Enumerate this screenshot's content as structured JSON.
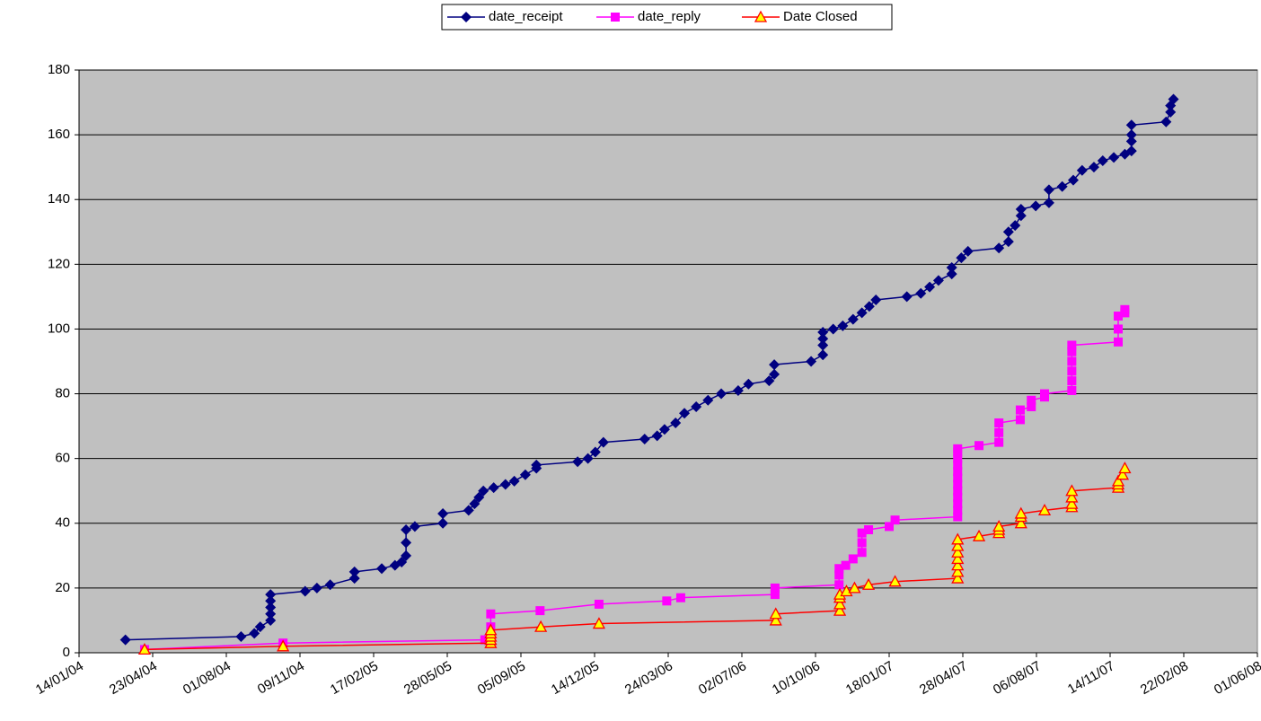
{
  "chart_data": {
    "type": "line",
    "legend": "top",
    "grid": true,
    "background": "#c0c0c0",
    "xlim": [
      "2004-01-14",
      "2008-06-01"
    ],
    "xticks": [
      {
        "value": "2004-01-14",
        "label": "14/01/04"
      },
      {
        "value": "2004-04-23",
        "label": "23/04/04"
      },
      {
        "value": "2004-08-01",
        "label": "01/08/04"
      },
      {
        "value": "2004-11-09",
        "label": "09/11/04"
      },
      {
        "value": "2005-02-17",
        "label": "17/02/05"
      },
      {
        "value": "2005-05-28",
        "label": "28/05/05"
      },
      {
        "value": "2005-09-05",
        "label": "05/09/05"
      },
      {
        "value": "2005-12-14",
        "label": "14/12/05"
      },
      {
        "value": "2006-03-24",
        "label": "24/03/06"
      },
      {
        "value": "2006-07-02",
        "label": "02/07/06"
      },
      {
        "value": "2006-10-10",
        "label": "10/10/06"
      },
      {
        "value": "2007-01-18",
        "label": "18/01/07"
      },
      {
        "value": "2007-04-28",
        "label": "28/04/07"
      },
      {
        "value": "2007-08-06",
        "label": "06/08/07"
      },
      {
        "value": "2007-11-14",
        "label": "14/11/07"
      },
      {
        "value": "2008-02-22",
        "label": "22/02/08"
      },
      {
        "value": "2008-06-01",
        "label": "01/06/08"
      }
    ],
    "ylim": [
      0,
      180
    ],
    "yticks": [
      0,
      20,
      40,
      60,
      80,
      100,
      120,
      140,
      160,
      180
    ],
    "series": [
      {
        "name": "date_receipt",
        "color": "#000080",
        "marker": "diamond",
        "x": [
          "2004-03-17",
          "2004-08-21",
          "2004-09-08",
          "2004-09-16",
          "2004-09-30",
          "2004-09-30",
          "2004-09-30",
          "2004-09-30",
          "2004-09-30",
          "2004-11-16",
          "2004-12-02",
          "2004-12-20",
          "2005-01-22",
          "2005-01-22",
          "2005-02-28",
          "2005-03-18",
          "2005-03-27",
          "2005-04-02",
          "2005-04-02",
          "2005-04-02",
          "2005-04-14",
          "2005-05-22",
          "2005-05-22",
          "2005-06-26",
          "2005-07-04",
          "2005-07-10",
          "2005-07-16",
          "2005-07-30",
          "2005-08-15",
          "2005-08-27",
          "2005-09-11",
          "2005-09-26",
          "2005-09-26",
          "2005-11-21",
          "2005-12-05",
          "2005-12-15",
          "2005-12-26",
          "2006-02-20",
          "2006-03-09",
          "2006-03-19",
          "2006-04-03",
          "2006-04-15",
          "2006-05-01",
          "2006-05-17",
          "2006-06-04",
          "2006-06-27",
          "2006-07-11",
          "2006-08-08",
          "2006-08-15",
          "2006-08-15",
          "2006-10-04",
          "2006-10-20",
          "2006-10-20",
          "2006-10-20",
          "2006-10-20",
          "2006-11-03",
          "2006-11-16",
          "2006-11-30",
          "2006-12-12",
          "2006-12-22",
          "2006-12-31",
          "2007-02-11",
          "2007-03-02",
          "2007-03-14",
          "2007-03-26",
          "2007-04-13",
          "2007-04-13",
          "2007-04-26",
          "2007-05-05",
          "2007-06-16",
          "2007-06-29",
          "2007-06-29",
          "2007-07-08",
          "2007-07-16",
          "2007-07-16",
          "2007-08-05",
          "2007-08-23",
          "2007-08-23",
          "2007-09-10",
          "2007-09-25",
          "2007-10-07",
          "2007-10-23",
          "2007-11-04",
          "2007-11-19",
          "2007-12-04",
          "2007-12-13",
          "2007-12-13",
          "2007-12-13",
          "2007-12-13",
          "2008-01-29",
          "2008-02-04",
          "2008-02-04",
          "2008-02-08"
        ],
        "values": [
          4,
          5,
          6,
          8,
          10,
          12,
          14,
          16,
          18,
          19,
          20,
          21,
          23,
          25,
          26,
          27,
          28,
          30,
          34,
          38,
          39,
          40,
          43,
          44,
          46,
          48,
          50,
          51,
          52,
          53,
          55,
          57,
          58,
          59,
          60,
          62,
          65,
          66,
          67,
          69,
          71,
          74,
          76,
          78,
          80,
          81,
          83,
          84,
          86,
          89,
          90,
          92,
          95,
          97,
          99,
          100,
          101,
          103,
          105,
          107,
          109,
          110,
          111,
          113,
          115,
          117,
          119,
          122,
          124,
          125,
          127,
          130,
          132,
          135,
          137,
          138,
          139,
          143,
          144,
          146,
          149,
          150,
          152,
          153,
          154,
          155,
          158,
          160,
          163,
          164,
          167,
          169,
          171
        ]
      },
      {
        "name": "date_reply",
        "color": "#ff00ff",
        "marker": "square",
        "x": [
          "2004-04-12",
          "2004-10-17",
          "2005-07-18",
          "2005-07-26",
          "2005-07-26",
          "2005-07-26",
          "2005-10-01",
          "2005-12-20",
          "2006-03-22",
          "2006-04-10",
          "2006-08-16",
          "2006-08-16",
          "2006-11-11",
          "2006-11-11",
          "2006-11-11",
          "2006-11-20",
          "2006-11-30",
          "2006-12-12",
          "2006-12-12",
          "2006-12-12",
          "2006-12-21",
          "2007-01-18",
          "2007-01-26",
          "2007-04-21",
          "2007-04-21",
          "2007-04-21",
          "2007-04-21",
          "2007-04-21",
          "2007-04-21",
          "2007-04-21",
          "2007-04-21",
          "2007-04-21",
          "2007-04-21",
          "2007-04-21",
          "2007-04-21",
          "2007-05-20",
          "2007-06-16",
          "2007-06-16",
          "2007-06-16",
          "2007-07-15",
          "2007-07-15",
          "2007-07-30",
          "2007-07-30",
          "2007-08-17",
          "2007-08-17",
          "2007-09-23",
          "2007-09-23",
          "2007-09-23",
          "2007-09-23",
          "2007-09-23",
          "2007-09-23",
          "2007-11-25",
          "2007-11-25",
          "2007-11-25",
          "2007-12-04",
          "2007-12-04"
        ],
        "values": [
          1,
          3,
          4,
          5,
          8,
          12,
          13,
          15,
          16,
          17,
          18,
          20,
          21,
          24,
          26,
          27,
          29,
          31,
          34,
          37,
          38,
          39,
          41,
          42,
          44,
          46,
          48,
          50,
          52,
          54,
          56,
          58,
          60,
          62,
          63,
          64,
          65,
          68,
          71,
          72,
          75,
          76,
          78,
          79,
          80,
          81,
          84,
          87,
          90,
          93,
          95,
          96,
          100,
          104,
          105,
          106
        ]
      },
      {
        "name": "Date Closed",
        "color": "#ff0000",
        "marker": "triangle",
        "marker_fill": "#ffff00",
        "x": [
          "2004-04-12",
          "2004-10-17",
          "2005-07-26",
          "2005-07-26",
          "2005-07-26",
          "2005-07-26",
          "2005-07-26",
          "2005-10-02",
          "2005-12-20",
          "2006-08-17",
          "2006-08-17",
          "2006-11-12",
          "2006-11-12",
          "2006-11-12",
          "2006-11-12",
          "2006-11-21",
          "2006-12-02",
          "2006-12-21",
          "2007-01-26",
          "2007-04-21",
          "2007-04-21",
          "2007-04-21",
          "2007-04-21",
          "2007-04-21",
          "2007-04-21",
          "2007-04-21",
          "2007-05-20",
          "2007-06-16",
          "2007-06-16",
          "2007-06-16",
          "2007-07-16",
          "2007-07-16",
          "2007-07-16",
          "2007-08-17",
          "2007-09-23",
          "2007-09-23",
          "2007-09-23",
          "2007-09-23",
          "2007-11-25",
          "2007-11-25",
          "2007-11-25",
          "2007-12-01",
          "2007-12-04"
        ],
        "values": [
          1,
          2,
          3,
          4,
          5,
          6,
          7,
          8,
          9,
          10,
          12,
          13,
          15,
          17,
          18,
          19,
          20,
          21,
          22,
          23,
          25,
          27,
          29,
          31,
          33,
          35,
          36,
          37,
          38,
          39,
          40,
          42,
          43,
          44,
          45,
          46,
          48,
          50,
          51,
          52,
          53,
          55,
          57
        ]
      }
    ]
  }
}
